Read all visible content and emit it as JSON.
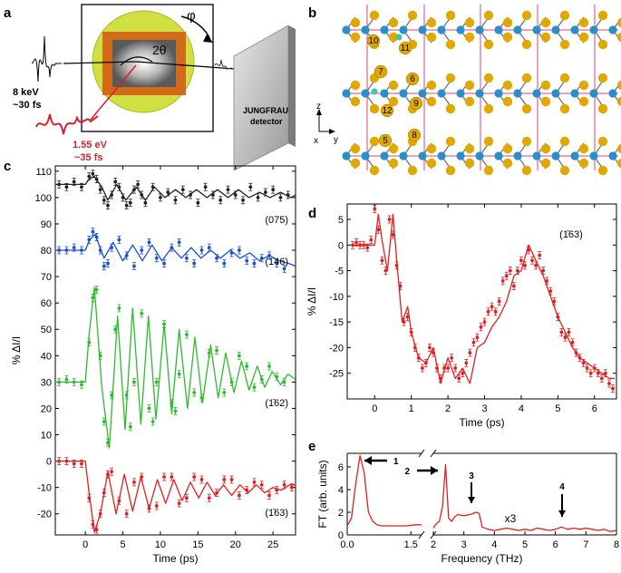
{
  "panels": {
    "a": {
      "label": "a",
      "beam_text_1": "8 keV",
      "beam_text_2": "~30 fs",
      "pump_text_1": "1.55 eV",
      "pump_text_2": "~35 fs",
      "detector_line1": "JUNGFRAU",
      "detector_line2": "detector",
      "angle_theta": "2θ",
      "angle_phi": "φ",
      "colors": {
        "pump": "#d4202a",
        "sample_disk": "#d0e040",
        "crystal": "#d26a1a"
      }
    },
    "b": {
      "label": "b",
      "atom_labels": [
        "10",
        "11",
        "7",
        "6",
        "12",
        "9",
        "5",
        "8"
      ],
      "axis_z": "z",
      "axis_x": "x",
      "axis_y": "y",
      "colors": {
        "sulfur": "#e0a800",
        "metal": "#2a8fc8",
        "cell_line": "#e0407a"
      }
    },
    "c": {
      "label": "c"
    },
    "d": {
      "label": "d"
    },
    "e": {
      "label": "e"
    }
  },
  "chart_data": [
    {
      "id": "c",
      "type": "line",
      "xlabel": "Time (ps)",
      "ylabel": "% ΔI/I",
      "xlim": [
        -4,
        28
      ],
      "ylim": [
        -28,
        112
      ],
      "xticks": [
        0,
        5,
        10,
        15,
        20,
        25
      ],
      "yticks": [
        -20,
        -10,
        0,
        10,
        20,
        30,
        40,
        50,
        60,
        70,
        80,
        90,
        100,
        110
      ],
      "series": [
        {
          "name": "(075)",
          "color": "#222222",
          "x": [
            -3.5,
            -2.5,
            -1.5,
            -0.5,
            0.5,
            1.0,
            1.5,
            2.0,
            2.5,
            3.0,
            3.5,
            4.0,
            4.5,
            5.0,
            5.5,
            6.0,
            6.5,
            7.0,
            7.5,
            8.0,
            9.0,
            10.0,
            11.0,
            12.0,
            13.0,
            14.0,
            15.0,
            16.0,
            17.0,
            18.0,
            19.0,
            20.0,
            21.0,
            22.0,
            23.0,
            24.0,
            25.0,
            26.0,
            27.0
          ],
          "y": [
            105,
            104,
            106,
            104,
            108,
            109,
            107,
            103,
            99,
            97,
            101,
            106,
            104,
            100,
            97,
            98,
            103,
            105,
            101,
            98,
            104,
            100,
            102,
            99,
            103,
            101,
            98,
            104,
            101,
            99,
            103,
            101,
            99,
            104,
            100,
            102,
            103,
            100,
            101
          ],
          "fit_x": [
            -4,
            0,
            0.5,
            1.2,
            2.2,
            3.0,
            4.2,
            5.4,
            6.8,
            8.0,
            9.2,
            10.6,
            12.0,
            13.4,
            14.8,
            16.2,
            17.6,
            19.0,
            20.4,
            21.8,
            23.2,
            24.6,
            26.0,
            27.4,
            28
          ],
          "fit_y": [
            105,
            105,
            107,
            108,
            104,
            99,
            105,
            99,
            104,
            99,
            104,
            100,
            103,
            100,
            103,
            100,
            103,
            100,
            103,
            100,
            102,
            100,
            102,
            100,
            101
          ],
          "label": "(075)"
        },
        {
          "name": "(-146)",
          "color": "#1a4fd6",
          "x": [
            -3.5,
            -2.5,
            -1.5,
            -0.5,
            0.5,
            1.0,
            1.5,
            2.0,
            2.5,
            3.0,
            3.5,
            4.5,
            5.5,
            6.5,
            7.5,
            8.5,
            9.5,
            10.5,
            11.5,
            12.5,
            13.5,
            14.5,
            15.5,
            16.5,
            17.5,
            18.5,
            19.5,
            20.5,
            21.5,
            22.5,
            23.5,
            24.5,
            25.5,
            26.5
          ],
          "y": [
            80,
            80,
            81,
            80,
            84,
            87,
            85,
            80,
            74,
            75,
            81,
            84,
            78,
            74,
            80,
            83,
            77,
            75,
            81,
            83,
            77,
            75,
            80,
            81,
            77,
            75,
            79,
            80,
            76,
            75,
            77,
            78,
            75,
            73
          ],
          "fit_x": [
            -4,
            0,
            0.6,
            1.3,
            2.5,
            3.7,
            5.0,
            6.3,
            7.6,
            8.9,
            10.2,
            11.5,
            12.8,
            14.1,
            15.4,
            16.7,
            18.0,
            19.3,
            20.6,
            21.9,
            23.2,
            24.5,
            25.8,
            27.1,
            28
          ],
          "fit_y": [
            80,
            80,
            84,
            86,
            77,
            83,
            76,
            82,
            76,
            82,
            76,
            81,
            77,
            81,
            77,
            80,
            77,
            80,
            77,
            79,
            76,
            78,
            76,
            75,
            74
          ],
          "label": "(1̄46)"
        },
        {
          "name": "(-162)",
          "color": "#2dbb2d",
          "x": [
            -3.5,
            -2.5,
            -1.5,
            -0.5,
            0.5,
            1.0,
            1.5,
            2.0,
            2.5,
            3.0,
            3.5,
            4.0,
            4.5,
            5.5,
            6.0,
            6.5,
            7.5,
            8.5,
            9.0,
            9.5,
            10.5,
            11.5,
            12.0,
            12.5,
            13.5,
            14.5,
            15.5,
            16.5,
            17.5,
            18.5,
            19.5,
            20.5,
            21.5,
            22.5,
            23.5,
            24.5,
            25.5,
            26.5
          ],
          "y": [
            30,
            31,
            30,
            29,
            45,
            62,
            65,
            40,
            15,
            7,
            25,
            50,
            58,
            25,
            13,
            30,
            56,
            20,
            15,
            30,
            52,
            22,
            19,
            33,
            48,
            26,
            24,
            41,
            42,
            26,
            30,
            40,
            36,
            28,
            31,
            36,
            32,
            30
          ],
          "fit_x": [
            -4,
            0,
            0.5,
            1.2,
            2.2,
            3.2,
            4.3,
            5.3,
            6.3,
            7.4,
            8.4,
            9.4,
            10.5,
            11.5,
            12.5,
            13.6,
            14.6,
            15.6,
            16.7,
            17.7,
            18.7,
            19.8,
            20.8,
            21.8,
            22.9,
            23.9,
            24.9,
            26.0,
            27.0,
            28
          ],
          "fit_y": [
            30,
            30,
            48,
            66,
            28,
            5,
            55,
            12,
            58,
            14,
            55,
            16,
            52,
            18,
            50,
            20,
            47,
            22,
            44,
            24,
            41,
            26,
            38,
            27,
            36,
            28,
            34,
            29,
            33,
            31
          ],
          "label": "(1̄62)"
        },
        {
          "name": "(-163)",
          "color": "#e02020",
          "x": [
            -3.5,
            -2.5,
            -1.5,
            -0.5,
            0.5,
            1.0,
            1.5,
            2.0,
            2.5,
            3.0,
            3.5,
            4.5,
            5.5,
            6.5,
            7.5,
            8.5,
            9.5,
            10.5,
            11.5,
            12.5,
            13.5,
            14.5,
            15.5,
            16.5,
            17.5,
            18.5,
            19.5,
            20.5,
            21.5,
            22.5,
            23.5,
            24.5,
            25.5,
            26.5,
            27.5
          ],
          "y": [
            0,
            0,
            -1,
            -1,
            -14,
            -24,
            -26,
            -20,
            -12,
            -5,
            -4,
            -15,
            -20,
            -8,
            -6,
            -18,
            -17,
            -6,
            -6,
            -16,
            -14,
            -6,
            -7,
            -14,
            -12,
            -7,
            -7,
            -13,
            -11,
            -8,
            -9,
            -13,
            -11,
            -9,
            -10
          ],
          "fit_x": [
            -4,
            0,
            0.5,
            1.2,
            2.0,
            3.0,
            4.1,
            5.2,
            6.3,
            7.4,
            8.5,
            9.6,
            10.7,
            11.8,
            12.9,
            14.0,
            15.1,
            16.2,
            17.3,
            18.4,
            19.5,
            20.6,
            21.7,
            22.8,
            23.9,
            25.0,
            26.1,
            27.2,
            28
          ],
          "fit_y": [
            0,
            0,
            -12,
            -27,
            -20,
            -4,
            -20,
            -5,
            -19,
            -6,
            -18,
            -7,
            -16,
            -7,
            -15,
            -8,
            -14,
            -8,
            -13,
            -9,
            -13,
            -9,
            -12,
            -9,
            -12,
            -10,
            -11,
            -9,
            -9
          ],
          "label": "(1̄63)"
        }
      ]
    },
    {
      "id": "d",
      "type": "line",
      "xlabel": "Time (ps)",
      "ylabel": "% ΔI/I",
      "xlim": [
        -0.75,
        6.6
      ],
      "ylim": [
        -30,
        8
      ],
      "xticks": [
        0,
        1,
        2,
        3,
        4,
        5,
        6
      ],
      "yticks": [
        5,
        0,
        -5,
        -10,
        -15,
        -20,
        -25
      ],
      "annotation": "(1̄63)",
      "series": [
        {
          "name": "(-163)",
          "color": "#e02020",
          "x": [
            -0.6,
            -0.5,
            -0.4,
            -0.3,
            -0.2,
            -0.1,
            0.0,
            0.1,
            0.2,
            0.3,
            0.4,
            0.5,
            0.6,
            0.7,
            0.8,
            0.9,
            1.0,
            1.1,
            1.2,
            1.3,
            1.4,
            1.5,
            1.6,
            1.7,
            1.8,
            1.9,
            2.0,
            2.1,
            2.2,
            2.3,
            2.4,
            2.5,
            2.6,
            2.7,
            2.8,
            2.9,
            3.0,
            3.1,
            3.2,
            3.3,
            3.4,
            3.5,
            3.6,
            3.7,
            3.8,
            3.9,
            4.0,
            4.1,
            4.2,
            4.3,
            4.4,
            4.5,
            4.6,
            4.7,
            4.8,
            4.9,
            5.0,
            5.1,
            5.2,
            5.3,
            5.4,
            5.5,
            5.6,
            5.7,
            5.8,
            5.9,
            6.0,
            6.1,
            6.2,
            6.3,
            6.4,
            6.5
          ],
          "y": [
            0,
            0.5,
            0,
            0,
            -0.5,
            1,
            7,
            3,
            -3,
            -5,
            5,
            2,
            -4,
            -8,
            -15,
            -14,
            -17,
            -20,
            -22,
            -24,
            -23,
            -20,
            -21,
            -24,
            -26,
            -24,
            -24,
            -22,
            -24,
            -26,
            -25,
            -23,
            -21,
            -19,
            -18,
            -16,
            -15,
            -13,
            -12,
            -13,
            -11,
            -7,
            -6,
            -5,
            -8,
            -5,
            -3,
            -4,
            -1,
            -3,
            -4,
            -2,
            -5,
            -7,
            -9,
            -11,
            -14,
            -17,
            -18,
            -17,
            -19,
            -21,
            -22,
            -23,
            -24,
            -25,
            -24,
            -25,
            -26,
            -25,
            -27,
            -28
          ],
          "fit_x": [
            -0.6,
            0.0,
            0.1,
            0.2,
            0.35,
            0.5,
            0.6,
            0.75,
            0.9,
            1.0,
            1.2,
            1.4,
            1.6,
            1.8,
            2.0,
            2.2,
            2.4,
            2.6,
            2.8,
            3.0,
            3.2,
            3.4,
            3.6,
            3.8,
            4.0,
            4.2,
            4.4,
            4.6,
            4.8,
            5.0,
            5.2,
            5.4,
            5.6,
            5.8,
            6.0,
            6.2,
            6.4,
            6.55
          ],
          "fit_y": [
            0,
            0,
            6,
            1,
            -5,
            6,
            -3,
            -15,
            -12,
            -17,
            -22,
            -23,
            -20,
            -27,
            -22,
            -26,
            -24,
            -27,
            -20,
            -19,
            -16,
            -14,
            -11,
            -6,
            -5,
            0,
            -3,
            -6,
            -10,
            -14,
            -17,
            -20,
            -22,
            -23,
            -24,
            -25,
            -26,
            -26
          ]
        }
      ]
    },
    {
      "id": "e",
      "type": "line",
      "xlabel": "Frequency (THz)",
      "ylabel": "FT (arb. units)",
      "ylim": [
        0,
        7.2
      ],
      "yticks": [
        0,
        2,
        4,
        6
      ],
      "x_break": true,
      "xticks_left": [
        "0.0",
        "1.5"
      ],
      "xticks_right": [
        "2",
        "3",
        "4",
        "5",
        "6",
        "7",
        "8"
      ],
      "multiplier_label": "x3",
      "peak_labels": [
        "1",
        "2",
        "3",
        "4"
      ],
      "series": [
        {
          "name": "FT",
          "color": "#e02020",
          "x_left": [
            0.0,
            0.1,
            0.2,
            0.3,
            0.4,
            0.5,
            0.6,
            0.7,
            0.8,
            1.0,
            1.2,
            1.4,
            1.6,
            1.75
          ],
          "y_left": [
            0.8,
            1.5,
            4.5,
            7.0,
            5.5,
            2.0,
            1.2,
            0.9,
            0.8,
            0.8,
            0.8,
            0.8,
            0.9,
            0.9
          ],
          "x_right": [
            2.0,
            2.1,
            2.2,
            2.3,
            2.4,
            2.5,
            2.6,
            2.7,
            2.8,
            3.0,
            3.2,
            3.4,
            3.5,
            3.6,
            3.8,
            4.0,
            4.2,
            4.4,
            4.6,
            4.8,
            5.0,
            5.2,
            5.4,
            5.6,
            5.8,
            6.0,
            6.2,
            6.4,
            6.6,
            6.8,
            7.0,
            7.2,
            7.4,
            7.6,
            7.8,
            8.0
          ],
          "y_right": [
            0.6,
            1.0,
            1.2,
            2.5,
            6.2,
            1.5,
            1.2,
            1.6,
            1.8,
            1.7,
            1.8,
            2.0,
            1.9,
            0.7,
            0.5,
            0.4,
            0.5,
            0.6,
            0.5,
            0.4,
            0.5,
            0.4,
            0.6,
            0.5,
            0.4,
            0.5,
            0.7,
            0.5,
            0.6,
            0.5,
            0.6,
            0.5,
            0.4,
            0.5,
            0.3,
            0.4
          ]
        }
      ]
    }
  ]
}
